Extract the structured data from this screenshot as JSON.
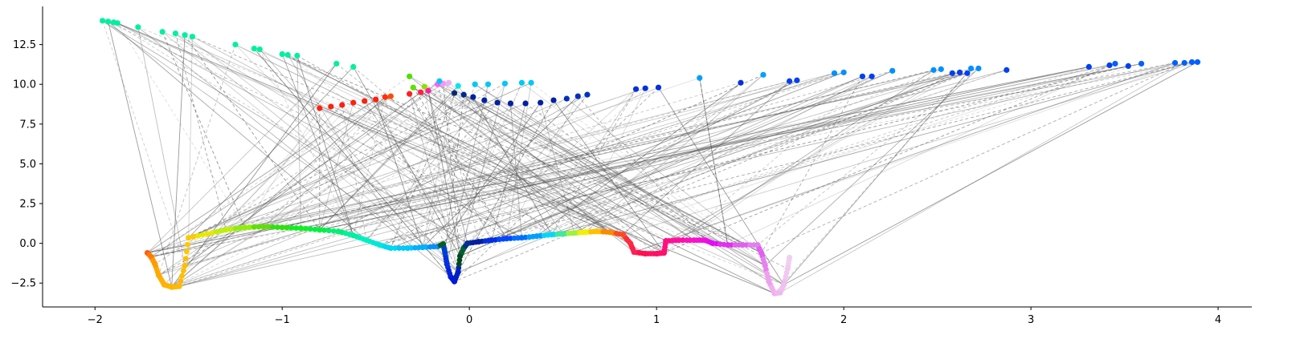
{
  "chart_data": {
    "type": "scatter",
    "title": "",
    "xlabel": "",
    "ylabel": "",
    "xlim": [
      -2.28,
      4.18
    ],
    "ylim": [
      -4.0,
      14.9
    ],
    "xticks": [
      -2,
      -1,
      0,
      1,
      2,
      3,
      4
    ],
    "xtick_labels": [
      "−2",
      "−1",
      "0",
      "1",
      "2",
      "3",
      "4"
    ],
    "yticks": [
      -2.5,
      0.0,
      2.5,
      5.0,
      7.5,
      10.0,
      12.5
    ],
    "ytick_labels": [
      "−2.5",
      "0.0",
      "2.5",
      "5.0",
      "7.5",
      "10.0",
      "12.5"
    ],
    "grid": false,
    "spines": [
      "left",
      "bottom"
    ],
    "connector_color": "#555555",
    "lower_curve_points": [
      {
        "x": -1.72,
        "y": -0.6,
        "color": "#ff5a10"
      },
      {
        "x": -1.7,
        "y": -0.85,
        "color": "#ff7a00"
      },
      {
        "x": -1.68,
        "y": -1.3,
        "color": "#ff9a00"
      },
      {
        "x": -1.66,
        "y": -2.0,
        "color": "#ffaa00"
      },
      {
        "x": -1.63,
        "y": -2.6,
        "color": "#ffb000"
      },
      {
        "x": -1.59,
        "y": -2.75,
        "color": "#ffb400"
      },
      {
        "x": -1.55,
        "y": -2.7,
        "color": "#ffb800"
      },
      {
        "x": -1.52,
        "y": -1.4,
        "color": "#ffbe00"
      },
      {
        "x": -1.5,
        "y": 0.35,
        "color": "#ffc800"
      },
      {
        "x": -1.4,
        "y": 0.6,
        "color": "#e8e800"
      },
      {
        "x": -1.3,
        "y": 0.85,
        "color": "#c0f000"
      },
      {
        "x": -1.2,
        "y": 1.0,
        "color": "#8ef000"
      },
      {
        "x": -1.1,
        "y": 1.05,
        "color": "#5ee000"
      },
      {
        "x": -1.0,
        "y": 1.0,
        "color": "#30e010"
      },
      {
        "x": -0.9,
        "y": 0.95,
        "color": "#10f020"
      },
      {
        "x": -0.8,
        "y": 0.85,
        "color": "#00f040"
      },
      {
        "x": -0.7,
        "y": 0.75,
        "color": "#00f070"
      },
      {
        "x": -0.62,
        "y": 0.5,
        "color": "#00f0a0"
      },
      {
        "x": -0.55,
        "y": 0.2,
        "color": "#00f0c0"
      },
      {
        "x": -0.48,
        "y": -0.1,
        "color": "#00e8d8"
      },
      {
        "x": -0.42,
        "y": -0.3,
        "color": "#00d8f0"
      },
      {
        "x": -0.33,
        "y": -0.3,
        "color": "#00c8f8"
      },
      {
        "x": -0.25,
        "y": -0.25,
        "color": "#00b0ff"
      },
      {
        "x": -0.17,
        "y": -0.2,
        "color": "#0090ff"
      },
      {
        "x": -0.14,
        "y": -0.05,
        "color": "#006020"
      },
      {
        "x": -0.13,
        "y": -0.6,
        "color": "#0040d0"
      },
      {
        "x": -0.12,
        "y": -1.3,
        "color": "#0030e0"
      },
      {
        "x": -0.1,
        "y": -2.1,
        "color": "#0020e0"
      },
      {
        "x": -0.08,
        "y": -2.4,
        "color": "#0018d8"
      },
      {
        "x": -0.06,
        "y": -1.8,
        "color": "#0020c0"
      },
      {
        "x": -0.05,
        "y": -0.8,
        "color": "#004820"
      },
      {
        "x": -0.03,
        "y": -0.3,
        "color": "#006030"
      },
      {
        "x": -0.01,
        "y": 0.0,
        "color": "#003090"
      },
      {
        "x": 0.05,
        "y": 0.1,
        "color": "#0020a0"
      },
      {
        "x": 0.12,
        "y": 0.2,
        "color": "#0030e0"
      },
      {
        "x": 0.2,
        "y": 0.3,
        "color": "#0048ff"
      },
      {
        "x": 0.28,
        "y": 0.35,
        "color": "#0070ff"
      },
      {
        "x": 0.36,
        "y": 0.45,
        "color": "#00a0ff"
      },
      {
        "x": 0.44,
        "y": 0.55,
        "color": "#00d8f8"
      },
      {
        "x": 0.5,
        "y": 0.6,
        "color": "#40e8a0"
      },
      {
        "x": 0.56,
        "y": 0.65,
        "color": "#a0f040"
      },
      {
        "x": 0.62,
        "y": 0.7,
        "color": "#f0f000"
      },
      {
        "x": 0.68,
        "y": 0.75,
        "color": "#ffc000"
      },
      {
        "x": 0.75,
        "y": 0.7,
        "color": "#ff8800"
      },
      {
        "x": 0.82,
        "y": 0.55,
        "color": "#ff4a20"
      },
      {
        "x": 0.86,
        "y": 0.0,
        "color": "#ff2a3c"
      },
      {
        "x": 0.88,
        "y": -0.55,
        "color": "#ff2050"
      },
      {
        "x": 0.94,
        "y": -0.65,
        "color": "#ff1050"
      },
      {
        "x": 1.0,
        "y": -0.65,
        "color": "#ff1060"
      },
      {
        "x": 1.04,
        "y": -0.6,
        "color": "#ff1070"
      },
      {
        "x": 1.05,
        "y": 0.15,
        "color": "#ff1080"
      },
      {
        "x": 1.12,
        "y": 0.2,
        "color": "#ff10a0"
      },
      {
        "x": 1.2,
        "y": 0.2,
        "color": "#ff10c0"
      },
      {
        "x": 1.26,
        "y": 0.2,
        "color": "#f010e0"
      },
      {
        "x": 1.3,
        "y": 0.0,
        "color": "#e010f0"
      },
      {
        "x": 1.38,
        "y": -0.1,
        "color": "#e030f0"
      },
      {
        "x": 1.46,
        "y": -0.1,
        "color": "#e060f0"
      },
      {
        "x": 1.54,
        "y": -0.1,
        "color": "#e080f0"
      },
      {
        "x": 1.56,
        "y": -0.6,
        "color": "#e060f0"
      },
      {
        "x": 1.58,
        "y": -1.4,
        "color": "#e880f0"
      },
      {
        "x": 1.6,
        "y": -2.4,
        "color": "#f0a0f0"
      },
      {
        "x": 1.63,
        "y": -3.15,
        "color": "#f0b0f0"
      },
      {
        "x": 1.66,
        "y": -3.1,
        "color": "#f0b8f0"
      },
      {
        "x": 1.68,
        "y": -2.6,
        "color": "#f0c0f0"
      },
      {
        "x": 1.7,
        "y": -1.6,
        "color": "#f0c8f0"
      },
      {
        "x": 1.71,
        "y": -0.9,
        "color": "#f0d0f0"
      }
    ],
    "upper_points": [
      {
        "x": -1.96,
        "y": 14.0,
        "color": "#00f0a0"
      },
      {
        "x": -1.93,
        "y": 13.95,
        "color": "#00f0a0"
      },
      {
        "x": -1.9,
        "y": 13.9,
        "color": "#00f0a0"
      },
      {
        "x": -1.88,
        "y": 13.85,
        "color": "#00f0a0"
      },
      {
        "x": -1.77,
        "y": 13.6,
        "color": "#00f0a0"
      },
      {
        "x": -1.64,
        "y": 13.3,
        "color": "#00f0a0"
      },
      {
        "x": -1.57,
        "y": 13.2,
        "color": "#00f0a0"
      },
      {
        "x": -1.52,
        "y": 13.1,
        "color": "#00f0a0"
      },
      {
        "x": -1.48,
        "y": 13.0,
        "color": "#00f0a0"
      },
      {
        "x": -1.25,
        "y": 12.5,
        "color": "#00f0a0"
      },
      {
        "x": -1.15,
        "y": 12.25,
        "color": "#00f0a0"
      },
      {
        "x": -1.12,
        "y": 12.2,
        "color": "#00f0a0"
      },
      {
        "x": -1.0,
        "y": 11.9,
        "color": "#00f0a0"
      },
      {
        "x": -0.97,
        "y": 11.85,
        "color": "#00f0a0"
      },
      {
        "x": -0.92,
        "y": 11.8,
        "color": "#00f0a0"
      },
      {
        "x": -0.71,
        "y": 11.3,
        "color": "#00f0a0"
      },
      {
        "x": -0.62,
        "y": 11.1,
        "color": "#00f0a0"
      },
      {
        "x": -0.32,
        "y": 10.5,
        "color": "#50e000"
      },
      {
        "x": -0.8,
        "y": 8.5,
        "color": "#ff2010"
      },
      {
        "x": -0.74,
        "y": 8.6,
        "color": "#ff2010"
      },
      {
        "x": -0.68,
        "y": 8.7,
        "color": "#ff2010"
      },
      {
        "x": -0.62,
        "y": 8.85,
        "color": "#ff2010"
      },
      {
        "x": -0.56,
        "y": 8.95,
        "color": "#ff2010"
      },
      {
        "x": -0.5,
        "y": 9.05,
        "color": "#ff2010"
      },
      {
        "x": -0.45,
        "y": 9.2,
        "color": "#ff3010"
      },
      {
        "x": -0.42,
        "y": 9.25,
        "color": "#ff4a00"
      },
      {
        "x": -0.32,
        "y": 9.4,
        "color": "#ff2020"
      },
      {
        "x": -0.26,
        "y": 9.5,
        "color": "#ff2040"
      },
      {
        "x": -0.22,
        "y": 9.6,
        "color": "#ff20a0"
      },
      {
        "x": -0.3,
        "y": 9.8,
        "color": "#60e000"
      },
      {
        "x": -0.24,
        "y": 9.85,
        "color": "#90e000"
      },
      {
        "x": -0.17,
        "y": 10.0,
        "color": "#ff60ff"
      },
      {
        "x": -0.14,
        "y": 10.05,
        "color": "#ff90ff"
      },
      {
        "x": -0.11,
        "y": 10.1,
        "color": "#f0b0f0"
      },
      {
        "x": -0.16,
        "y": 10.2,
        "color": "#00c8f0"
      },
      {
        "x": -0.06,
        "y": 9.9,
        "color": "#00e8e8"
      },
      {
        "x": 0.03,
        "y": 10.0,
        "color": "#00c8f8"
      },
      {
        "x": 0.1,
        "y": 10.0,
        "color": "#00c8f8"
      },
      {
        "x": 0.19,
        "y": 10.05,
        "color": "#00c8f8"
      },
      {
        "x": 0.28,
        "y": 10.1,
        "color": "#00c8f8"
      },
      {
        "x": 0.33,
        "y": 10.1,
        "color": "#00c8f8"
      },
      {
        "x": -0.08,
        "y": 9.45,
        "color": "#002a70"
      },
      {
        "x": -0.03,
        "y": 9.35,
        "color": "#002a90"
      },
      {
        "x": 0.02,
        "y": 9.2,
        "color": "#0020a0"
      },
      {
        "x": 0.08,
        "y": 9.0,
        "color": "#0020a0"
      },
      {
        "x": 0.15,
        "y": 8.85,
        "color": "#0020a0"
      },
      {
        "x": 0.22,
        "y": 8.8,
        "color": "#0020a0"
      },
      {
        "x": 0.3,
        "y": 8.8,
        "color": "#0020a0"
      },
      {
        "x": 0.38,
        "y": 8.85,
        "color": "#0020a0"
      },
      {
        "x": 0.45,
        "y": 9.0,
        "color": "#0020a0"
      },
      {
        "x": 0.52,
        "y": 9.1,
        "color": "#0030c0"
      },
      {
        "x": 0.58,
        "y": 9.25,
        "color": "#0030c0"
      },
      {
        "x": 0.63,
        "y": 9.35,
        "color": "#0030c0"
      },
      {
        "x": 0.89,
        "y": 9.7,
        "color": "#0030e0"
      },
      {
        "x": 0.94,
        "y": 9.75,
        "color": "#0030e0"
      },
      {
        "x": 1.01,
        "y": 9.8,
        "color": "#0030e0"
      },
      {
        "x": 1.23,
        "y": 10.4,
        "color": "#00a0ff"
      },
      {
        "x": 1.45,
        "y": 10.1,
        "color": "#0030e0"
      },
      {
        "x": 1.57,
        "y": 10.6,
        "color": "#00a0ff"
      },
      {
        "x": 1.71,
        "y": 10.2,
        "color": "#0040f0"
      },
      {
        "x": 1.75,
        "y": 10.25,
        "color": "#0040f0"
      },
      {
        "x": 1.95,
        "y": 10.7,
        "color": "#0090ff"
      },
      {
        "x": 2.0,
        "y": 10.75,
        "color": "#0090ff"
      },
      {
        "x": 2.1,
        "y": 10.5,
        "color": "#0040f0"
      },
      {
        "x": 2.15,
        "y": 10.5,
        "color": "#0040f0"
      },
      {
        "x": 2.26,
        "y": 10.85,
        "color": "#0090ff"
      },
      {
        "x": 2.48,
        "y": 10.9,
        "color": "#0090ff"
      },
      {
        "x": 2.52,
        "y": 10.95,
        "color": "#0090ff"
      },
      {
        "x": 2.58,
        "y": 10.7,
        "color": "#0040f0"
      },
      {
        "x": 2.62,
        "y": 10.75,
        "color": "#0040f0"
      },
      {
        "x": 2.68,
        "y": 11.0,
        "color": "#0090ff"
      },
      {
        "x": 2.72,
        "y": 11.0,
        "color": "#0090ff"
      },
      {
        "x": 2.66,
        "y": 10.7,
        "color": "#0040f0"
      },
      {
        "x": 2.87,
        "y": 10.9,
        "color": "#0040f0"
      },
      {
        "x": 3.31,
        "y": 11.1,
        "color": "#0040f0"
      },
      {
        "x": 3.42,
        "y": 11.2,
        "color": "#0040f0"
      },
      {
        "x": 3.45,
        "y": 11.3,
        "color": "#0060ff"
      },
      {
        "x": 3.52,
        "y": 11.15,
        "color": "#0040f0"
      },
      {
        "x": 3.59,
        "y": 11.3,
        "color": "#0060ff"
      },
      {
        "x": 3.77,
        "y": 11.35,
        "color": "#0060ff"
      },
      {
        "x": 3.82,
        "y": 11.35,
        "color": "#0060ff"
      },
      {
        "x": 3.86,
        "y": 11.4,
        "color": "#0060ff"
      },
      {
        "x": 3.89,
        "y": 11.4,
        "color": "#0060ff"
      }
    ]
  }
}
